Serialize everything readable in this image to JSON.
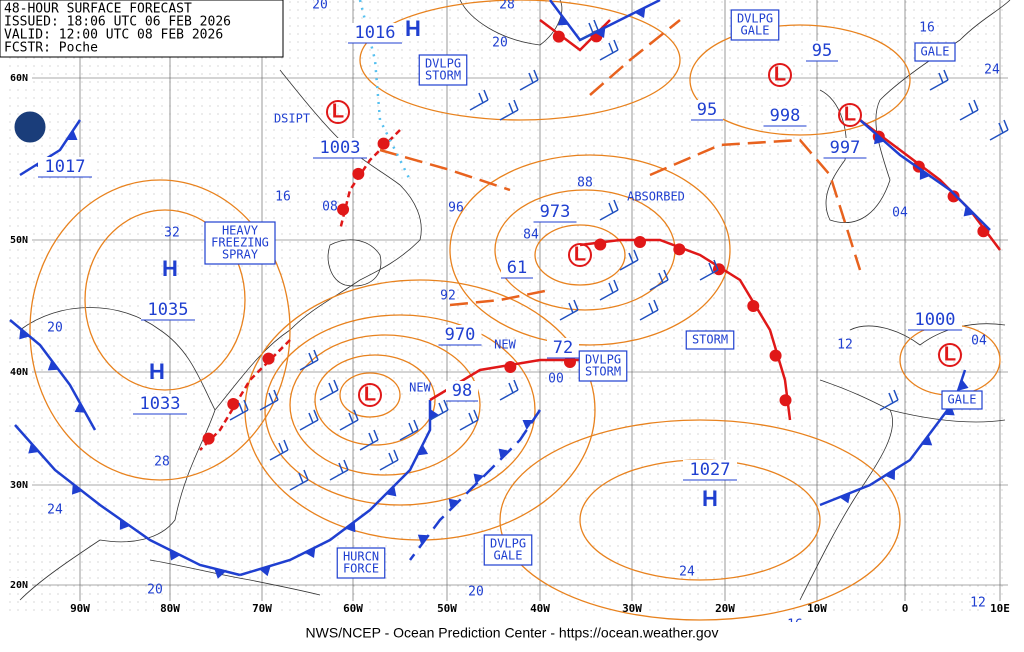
{
  "header": {
    "lines": [
      "48-HOUR SURFACE FORECAST",
      "ISSUED: 18:06 UTC 06 FEB 2026",
      "VALID: 12:00 UTC 08 FEB 2026",
      "FCSTR: Poche"
    ]
  },
  "footer": "NWS/NCEP - Ocean Prediction Center - https://ocean.weather.gov",
  "lat_labels": [
    "60N",
    "50N",
    "40N",
    "30N",
    "20N"
  ],
  "lon_labels": [
    "90W",
    "80W",
    "70W",
    "60W",
    "50W",
    "40W",
    "30W",
    "20W",
    "10W",
    "0",
    "10E"
  ],
  "highs": [
    "H",
    "H",
    "H",
    "H"
  ],
  "lows": [
    "L",
    "L",
    "L",
    "L",
    "L",
    "L"
  ],
  "pressure_labels": [
    "1016",
    "1017",
    "1003",
    "973",
    "61",
    "970",
    "98",
    "72",
    "95",
    "95",
    "998",
    "997",
    "1035",
    "1033",
    "1027",
    "1000"
  ],
  "warnings": [
    {
      "lines": [
        "DVLPG",
        "STORM"
      ]
    },
    {
      "lines": [
        "DVLPG",
        "GALE"
      ]
    },
    {
      "lines": [
        "GALE"
      ]
    },
    {
      "lines": [
        "HEAVY",
        "FREEZING",
        "SPRAY"
      ]
    },
    {
      "lines": [
        "STORM"
      ]
    },
    {
      "lines": [
        "DVLPG",
        "STORM"
      ]
    },
    {
      "lines": [
        "GALE"
      ]
    },
    {
      "lines": [
        "DVLPG",
        "GALE"
      ]
    },
    {
      "lines": [
        "HURCN",
        "FORCE"
      ]
    }
  ],
  "isobar_labels": [
    "20",
    "28",
    "20",
    "16",
    "24",
    "16",
    "08",
    "32",
    "96",
    "88",
    "84",
    "92",
    "20",
    "04",
    "12",
    "04",
    "00",
    "28",
    "24",
    "20",
    "20",
    "24",
    "16",
    "12"
  ],
  "notes": [
    "DSIPT",
    "ABSORBED",
    "NEW",
    "NEW"
  ]
}
